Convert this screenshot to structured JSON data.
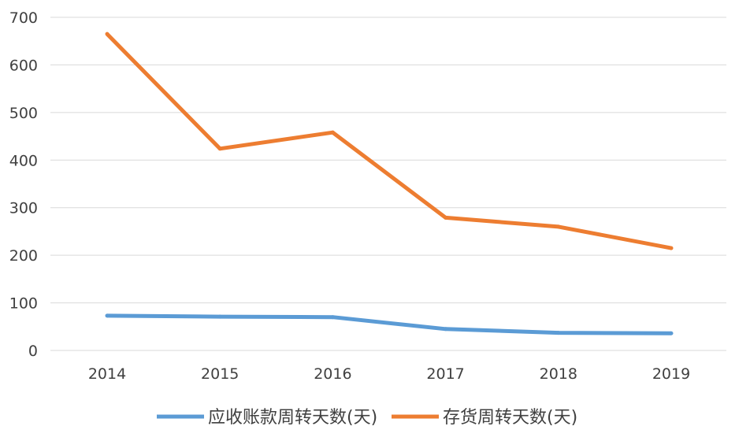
{
  "chart_data": {
    "type": "line",
    "title": "",
    "xlabel": "",
    "ylabel": "",
    "categories": [
      "2014",
      "2015",
      "2016",
      "2017",
      "2018",
      "2019"
    ],
    "ylim": [
      0,
      700
    ],
    "yticks": [
      0,
      100,
      200,
      300,
      400,
      500,
      600,
      700
    ],
    "grid": true,
    "legend_position": "bottom",
    "series": [
      {
        "name": "应收账款周转天数(天)",
        "color": "#5b9bd5",
        "values": [
          73,
          71,
          70,
          45,
          37,
          36
        ]
      },
      {
        "name": "存货周转天数(天)",
        "color": "#ed7d31",
        "values": [
          665,
          424,
          458,
          279,
          260,
          215
        ]
      }
    ]
  }
}
